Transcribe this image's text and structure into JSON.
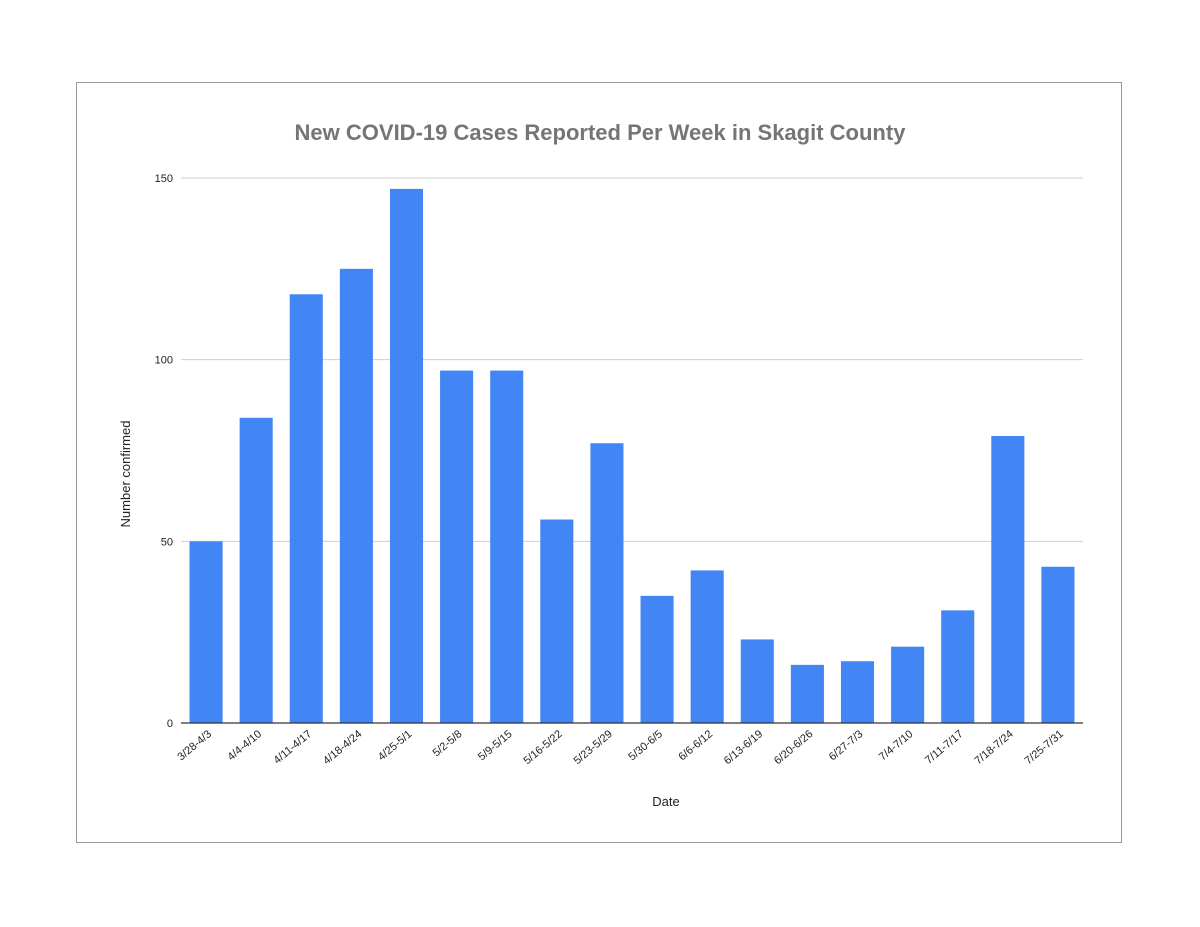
{
  "chart_data": {
    "type": "bar",
    "title": "New COVID-19 Cases Reported Per Week in Skagit County",
    "xlabel": "Date",
    "ylabel": "Number confirmed",
    "ylim": [
      0,
      150
    ],
    "yticks": [
      0,
      50,
      100,
      150
    ],
    "grid": true,
    "legend": "none",
    "bar_color": "#4285f4",
    "categories": [
      "3/28-4/3",
      "4/4-4/10",
      "4/11-4/17",
      "4/18-4/24",
      "4/25-5/1",
      "5/2-5/8",
      "5/9-5/15",
      "5/16-5/22",
      "5/23-5/29",
      "5/30-6/5",
      "6/6-6/12",
      "6/13-6/19",
      "6/20-6/26",
      "6/27-7/3",
      "7/4-7/10",
      "7/11-7/17",
      "7/18-7/24",
      "7/25-7/31"
    ],
    "values": [
      50,
      84,
      118,
      125,
      147,
      97,
      97,
      56,
      77,
      35,
      42,
      23,
      16,
      17,
      21,
      31,
      79,
      43
    ]
  }
}
